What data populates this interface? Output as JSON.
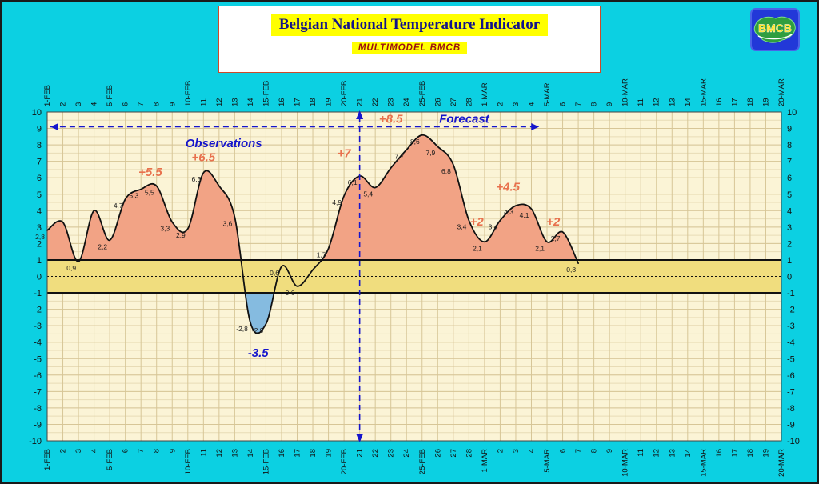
{
  "logo": {
    "text": "BMCB",
    "bg_color": "#2238d8",
    "map_color": "#2f9e3f",
    "text_color": "#ffdd00"
  },
  "chart_data": {
    "type": "area-line",
    "title": "Belgian National Temperature Indicator",
    "subtitle": "MULTIMODEL BMCB",
    "ylabel": "",
    "xlabel": "",
    "ylim": [
      -10,
      10
    ],
    "y_tick_step": 1,
    "band": {
      "from": -1,
      "to": 1
    },
    "forecast_split_day": 20,
    "arrow_line": {
      "y": 9.1,
      "from_day": 0.2,
      "to_day": 31.5
    },
    "x_labels": [
      "1-FEB",
      "2",
      "3",
      "4",
      "5-FEB",
      "6",
      "7",
      "8",
      "9",
      "10-FEB",
      "11",
      "12",
      "13",
      "14",
      "15-FEB",
      "16",
      "17",
      "18",
      "19",
      "20-FEB",
      "21",
      "22",
      "23",
      "24",
      "25-FEB",
      "26",
      "27",
      "28",
      "1-MAR",
      "2",
      "3",
      "4",
      "5-MAR",
      "6",
      "7",
      "8",
      "9",
      "10-MAR",
      "11",
      "12",
      "13",
      "14",
      "15-MAR",
      "16",
      "17",
      "18",
      "19",
      "20-MAR"
    ],
    "series": {
      "name": "national-temperature-indicator",
      "points": [
        {
          "day": 0,
          "v": 2.8,
          "label": "2,8"
        },
        {
          "day": 1,
          "v": 3.3
        },
        {
          "day": 2,
          "v": 0.9,
          "label": "0,9"
        },
        {
          "day": 3,
          "v": 4.0
        },
        {
          "day": 4,
          "v": 2.2,
          "label": "2,2"
        },
        {
          "day": 5,
          "v": 4.7,
          "label": "4,7"
        },
        {
          "day": 6,
          "v": 5.3,
          "label": "5,3"
        },
        {
          "day": 7,
          "v": 5.5,
          "label": "5,5"
        },
        {
          "day": 8,
          "v": 3.3,
          "label": "3,3"
        },
        {
          "day": 9,
          "v": 2.9,
          "label": "2,9"
        },
        {
          "day": 10,
          "v": 6.3,
          "label": "6,3"
        },
        {
          "day": 11,
          "v": 5.5
        },
        {
          "day": 12,
          "v": 3.6,
          "label": "3,6"
        },
        {
          "day": 13,
          "v": -2.8,
          "label": "-2,8"
        },
        {
          "day": 14,
          "v": -2.9,
          "label": "-2,9"
        },
        {
          "day": 15,
          "v": 0.6,
          "label": "0,6"
        },
        {
          "day": 16,
          "v": -0.6,
          "label": "-0,6"
        },
        {
          "day": 17,
          "v": 0.4
        },
        {
          "day": 18,
          "v": 1.7,
          "label": "1,7"
        },
        {
          "day": 19,
          "v": 4.9,
          "label": "4,9"
        },
        {
          "day": 20,
          "v": 6.1,
          "label": "6,1"
        },
        {
          "day": 21,
          "v": 5.4,
          "label": "5,4"
        },
        {
          "day": 22,
          "v": 6.6
        },
        {
          "day": 23,
          "v": 7.7,
          "label": "7,7"
        },
        {
          "day": 24,
          "v": 8.6,
          "label": "8,6"
        },
        {
          "day": 25,
          "v": 7.9,
          "label": "7,9"
        },
        {
          "day": 26,
          "v": 6.8,
          "label": "6,8"
        },
        {
          "day": 27,
          "v": 3.4,
          "label": "3,4"
        },
        {
          "day": 28,
          "v": 2.1,
          "label": "2,1"
        },
        {
          "day": 29,
          "v": 3.4,
          "label": "3,4"
        },
        {
          "day": 30,
          "v": 4.3,
          "label": "4,3"
        },
        {
          "day": 31,
          "v": 4.1,
          "label": "4,1"
        },
        {
          "day": 32,
          "v": 2.1,
          "label": "2,1"
        },
        {
          "day": 33,
          "v": 2.7,
          "label": "2,7"
        },
        {
          "day": 34,
          "v": 0.8,
          "label": "0,8"
        }
      ]
    },
    "annotations": [
      {
        "text": "Observations",
        "day": 11.3,
        "value": 7.85,
        "color": "blue"
      },
      {
        "text": "Forecast",
        "day": 26.7,
        "value": 9.35,
        "color": "blue"
      },
      {
        "text": "+5.5",
        "day": 6.6,
        "value": 6.1,
        "color": "warm"
      },
      {
        "text": "+6.5",
        "day": 10.0,
        "value": 7.0,
        "color": "warm"
      },
      {
        "text": "+7",
        "day": 19.0,
        "value": 7.25,
        "color": "warm"
      },
      {
        "text": "+8.5",
        "day": 22.0,
        "value": 9.35,
        "color": "warm"
      },
      {
        "text": "+2",
        "day": 27.5,
        "value": 3.1,
        "color": "warm"
      },
      {
        "text": "+4.5",
        "day": 29.5,
        "value": 5.2,
        "color": "warm"
      },
      {
        "text": "+2",
        "day": 32.4,
        "value": 3.1,
        "color": "warm"
      },
      {
        "text": "-3.5",
        "day": 13.5,
        "value": -4.9,
        "color": "blue"
      }
    ],
    "colors": {
      "page_bg": "#0cd0e2",
      "plot_bg": "#fbf4d6",
      "grid_minor": "#e8dcb6",
      "grid": "#d7c697",
      "band_fill": "#f0dd7e",
      "area_above": "#f2a385",
      "area_below": "#85bbe0",
      "line": "#111111",
      "annotation_warm": "#e8714d",
      "annotation_blue": "#1515cc",
      "dashed_line": "#1515cc"
    }
  }
}
